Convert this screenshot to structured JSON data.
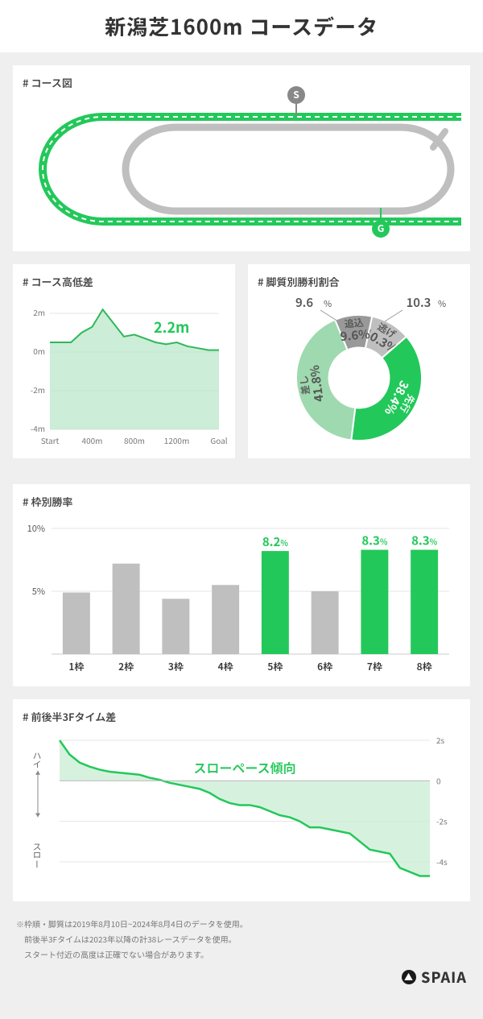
{
  "title": "新潟芝1600m コースデータ",
  "course_map": {
    "label": "# コース図",
    "start_label": "S",
    "goal_label": "G",
    "track_color": "#23c85a",
    "inner_color": "#bfbfbf",
    "bg_color": "#ffffff"
  },
  "elevation": {
    "label": "# コース高低差",
    "type": "area",
    "callout": "2.2m",
    "callout_color": "#23c85a",
    "x_labels": [
      "Start",
      "400m",
      "800m",
      "1200m",
      "Goal"
    ],
    "y_labels": [
      "2m",
      "0m",
      "-2m",
      "-4m"
    ],
    "y_values_at_labels": [
      2,
      0,
      -2,
      -4
    ],
    "ylim": [
      -4,
      2.5
    ],
    "points": [
      [
        0,
        0.5
      ],
      [
        100,
        0.5
      ],
      [
        200,
        0.5
      ],
      [
        300,
        1.0
      ],
      [
        400,
        1.3
      ],
      [
        500,
        2.2
      ],
      [
        600,
        1.5
      ],
      [
        700,
        0.8
      ],
      [
        800,
        0.9
      ],
      [
        900,
        0.7
      ],
      [
        1000,
        0.5
      ],
      [
        1100,
        0.4
      ],
      [
        1200,
        0.5
      ],
      [
        1300,
        0.3
      ],
      [
        1400,
        0.2
      ],
      [
        1500,
        0.1
      ],
      [
        1600,
        0.1
      ]
    ],
    "line_color": "#2fb85a",
    "fill_color": "#b6e6c6",
    "grid_color": "#e5e5e5",
    "axis_color": "#888888",
    "text_color": "#777777",
    "font_size": 10
  },
  "running_style": {
    "label": "# 脚質別勝利割合",
    "type": "donut",
    "slices": [
      {
        "name": "逃げ",
        "value": 10.3,
        "color": "#bfbfbf",
        "label": "10.3"
      },
      {
        "name": "先行",
        "value": 38.4,
        "color": "#23c85a",
        "label": "38.4"
      },
      {
        "name": "差し",
        "value": 41.8,
        "color": "#9ed9af",
        "label": "41.8"
      },
      {
        "name": "追込",
        "value": 9.6,
        "color": "#999999",
        "label": "9.6"
      }
    ],
    "center_radius": 0.48,
    "outer_radius": 1.0,
    "start_angle_deg": -78,
    "text_color": "#555555",
    "percent_fontsize": 15,
    "name_fontsize": 12
  },
  "frame_winrate": {
    "label": "# 枠別勝率",
    "type": "bar",
    "categories": [
      "1枠",
      "2枠",
      "3枠",
      "4枠",
      "5枠",
      "6枠",
      "7枠",
      "8枠"
    ],
    "values": [
      4.9,
      7.2,
      4.4,
      5.5,
      8.2,
      5.0,
      8.3,
      8.3
    ],
    "highlight": [
      false,
      false,
      false,
      false,
      true,
      false,
      true,
      true
    ],
    "value_labels": {
      "4": "8.2",
      "6": "8.3",
      "7": "8.3"
    },
    "bar_color_default": "#bfbfbf",
    "bar_color_highlight": "#23c85a",
    "ylim": [
      0,
      10
    ],
    "y_ticks": [
      5,
      10
    ],
    "y_tick_labels": [
      "5%",
      "10%"
    ],
    "grid_color": "#e5e5e5",
    "text_color": "#555555",
    "font_size": 11,
    "bar_width": 0.55
  },
  "pace": {
    "label": "# 前後半3Fタイム差",
    "type": "area",
    "annotation": "スローペース傾向",
    "annotation_color": "#23c85a",
    "y_axis_label_top": "ハイ",
    "y_axis_label_bottom": "スロー",
    "y_ticks": [
      2,
      0,
      -2,
      -4
    ],
    "y_tick_labels": [
      "2s",
      "0",
      "-2s",
      "-4s"
    ],
    "ylim": [
      -5,
      2
    ],
    "points_y": [
      2.0,
      1.3,
      0.9,
      0.7,
      0.55,
      0.45,
      0.4,
      0.35,
      0.3,
      0.15,
      0.05,
      -0.1,
      -0.2,
      -0.3,
      -0.4,
      -0.6,
      -0.9,
      -1.1,
      -1.2,
      -1.2,
      -1.3,
      -1.5,
      -1.7,
      -1.8,
      -2.0,
      -2.3,
      -2.3,
      -2.4,
      -2.5,
      -2.6,
      -3.0,
      -3.4,
      -3.5,
      -3.6,
      -4.3,
      -4.5,
      -4.7,
      -4.7
    ],
    "line_color": "#23c85a",
    "fill_color": "#c9ecd4",
    "zero_line_color": "#bbbbbb",
    "grid_color": "#e5e5e5",
    "text_color": "#777777",
    "font_size": 10
  },
  "footnote_lines": [
    "※枠順・脚質は2019年8月10日~2024年8月4日のデータを使用。",
    "　前後半3Fタイムは2023年以降の計38レースデータを使用。",
    "　スタート付近の高度は正確でない場合があります。"
  ],
  "footer_brand": "SPAIA"
}
